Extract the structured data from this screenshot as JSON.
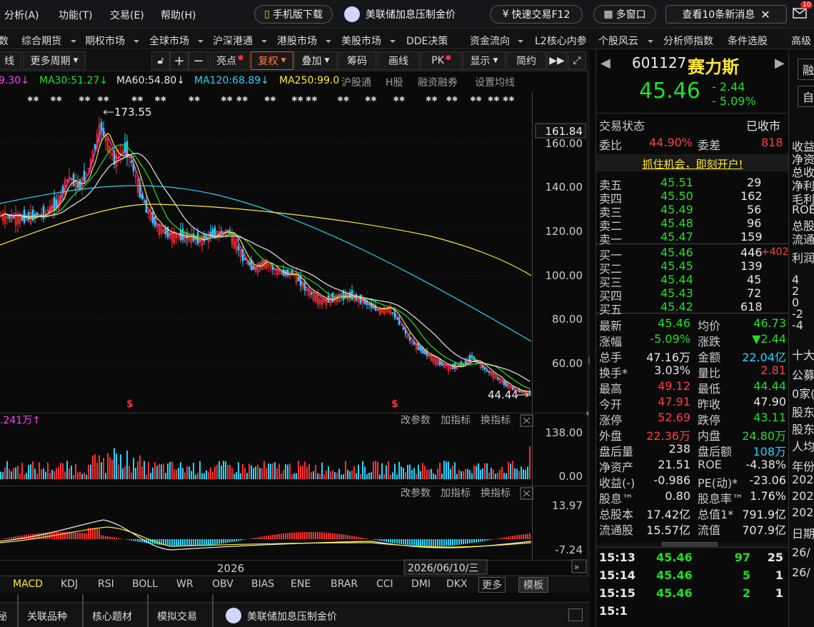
{
  "top": {
    "menus": [
      "分析(A)",
      "功能(T)",
      "交易(E)",
      "帮助(H)"
    ],
    "mobile_download": "手机版下载",
    "ad_text": "美联储加息压制金价",
    "quick_trade": "快速交易F12",
    "multi_window": "多窗口",
    "news_button": "查看10条新消息",
    "notif_count": "10"
  },
  "nav": [
    "数",
    "综合期货",
    "期权市场",
    "全球市场",
    "沪深港通",
    "港股市场",
    "美股市场",
    "DDE决策",
    "资金流向",
    "L2核心内参",
    "个股风云",
    "分析师指数",
    "条件选股",
    "高级"
  ],
  "toolbar": [
    "线",
    "更多周期",
    "亮点",
    "复权",
    "叠加",
    "筹码",
    "画线",
    "PK",
    "显示",
    "简约"
  ],
  "ma": [
    {
      "label": "9.30↓",
      "color": "#ff40ff"
    },
    {
      "label": "MA30:51.27↓",
      "color": "#1fe028"
    },
    {
      "label": "MA60:54.80↓",
      "color": "#e8e8e8"
    },
    {
      "label": "MA120:68.89↓",
      "color": "#25d4ff"
    },
    {
      "label": "MA250:99.0",
      "color": "#ffe833"
    },
    {
      "label": "沪股通",
      "color": "#999999"
    },
    {
      "label": "H股",
      "color": "#999999"
    },
    {
      "label": "融资融券",
      "color": "#999999"
    },
    {
      "label": "设置均线",
      "color": "#999999"
    }
  ],
  "price_axis": [
    "161.84",
    "160.00",
    "140.00",
    "120.00",
    "100.00",
    "80.00",
    "60.00"
  ],
  "chart_marks": {
    "high": "173.55",
    "low": "44.44",
    "year": "2026",
    "date": "2026/06/10/三"
  },
  "vol": {
    "label": ".241万↑",
    "ticks": [
      "138.00",
      "0.00"
    ],
    "buttons": [
      "改参数",
      "加指标",
      "换指标"
    ]
  },
  "macd": {
    "ticks": [
      "13.97",
      "-7.24"
    ],
    "buttons": [
      "改参数",
      "加指标",
      "换指标"
    ]
  },
  "ind_tabs": [
    "MACD",
    "KDJ",
    "RSI",
    "BOLL",
    "WR",
    "OBV",
    "BIAS",
    "ENE",
    "BRAR",
    "CCI",
    "DMI",
    "DKX",
    "更多",
    "模板"
  ],
  "bottom": [
    "秘",
    "关联品种",
    "核心题材",
    "模拟交易",
    "美联储加息压制金价"
  ],
  "stock": {
    "code": "601127",
    "name": "赛力斯",
    "price": "45.46",
    "change": "- 2.44",
    "pct": "- 5.09%",
    "status_label": "交易状态",
    "status": "已收市",
    "weibi_label": "委比",
    "weibi": "44.90%",
    "weicha_label": "委差",
    "weicha": "818",
    "promo": "抓住机会，即刻开户!"
  },
  "sell": [
    {
      "label": "卖五",
      "price": "45.51",
      "vol": "29"
    },
    {
      "label": "卖四",
      "price": "45.50",
      "vol": "162"
    },
    {
      "label": "卖三",
      "price": "45.49",
      "vol": "56"
    },
    {
      "label": "卖二",
      "price": "45.48",
      "vol": "96"
    },
    {
      "label": "卖一",
      "price": "45.47",
      "vol": "159"
    }
  ],
  "buy": [
    {
      "label": "买一",
      "price": "45.46",
      "vol": "446",
      "extra": "+402"
    },
    {
      "label": "买二",
      "price": "45.45",
      "vol": "139",
      "extra": ""
    },
    {
      "label": "买三",
      "price": "45.44",
      "vol": "45",
      "extra": ""
    },
    {
      "label": "买四",
      "price": "45.43",
      "vol": "72",
      "extra": ""
    },
    {
      "label": "买五",
      "price": "45.42",
      "vol": "618",
      "extra": ""
    }
  ],
  "stats": [
    {
      "l1": "最新",
      "v1": "45.46",
      "c1": "g",
      "l2": "均价",
      "v2": "46.73",
      "c2": "g"
    },
    {
      "l1": "涨幅",
      "v1": "-5.09%",
      "c1": "g",
      "l2": "涨跌",
      "v2": "▼2.44",
      "c2": "g"
    },
    {
      "l1": "总手",
      "v1": "47.16万",
      "c1": "w",
      "l2": "金额",
      "v2": "22.04亿",
      "c2": "c"
    },
    {
      "l1": "换手*",
      "v1": "3.03%",
      "c1": "w",
      "l2": "量比",
      "v2": "2.81",
      "c2": "r"
    },
    {
      "l1": "最高",
      "v1": "49.12",
      "c1": "r",
      "l2": "最低",
      "v2": "44.44",
      "c2": "g"
    },
    {
      "l1": "今开",
      "v1": "47.91",
      "c1": "r",
      "l2": "昨收",
      "v2": "47.90",
      "c2": "w"
    },
    {
      "l1": "涨停",
      "v1": "52.69",
      "c1": "r",
      "l2": "跌停",
      "v2": "43.11",
      "c2": "g"
    },
    {
      "l1": "外盘",
      "v1": "22.36万",
      "c1": "r",
      "l2": "内盘",
      "v2": "24.80万",
      "c2": "g"
    },
    {
      "l1": "盘后量",
      "v1": "238",
      "c1": "w",
      "l2": "盘后额",
      "v2": "108万",
      "c2": "c"
    },
    {
      "l1": "净资产",
      "v1": "21.51",
      "c1": "w",
      "l2": "ROE",
      "v2": "-4.38%",
      "c2": "w"
    },
    {
      "l1": "收益(-)",
      "v1": "-0.986",
      "c1": "w",
      "l2": "PE(动)*",
      "v2": "-23.06",
      "c2": "w"
    },
    {
      "l1": "股息™",
      "v1": "0.80",
      "c1": "w",
      "l2": "股息率™",
      "v2": "1.76%",
      "c2": "w"
    },
    {
      "l1": "总股本",
      "v1": "17.42亿",
      "c1": "w",
      "l2": "总值1*",
      "v2": "791.9亿",
      "c2": "w"
    },
    {
      "l1": "流通股",
      "v1": "15.57亿",
      "c1": "w",
      "l2": "流值",
      "v2": "707.9亿",
      "c2": "w"
    }
  ],
  "ticks": [
    {
      "t": "15:13",
      "p": "45.46",
      "v": "97",
      "n": "25"
    },
    {
      "t": "15:14",
      "p": "45.46",
      "v": "5",
      "n": "1"
    },
    {
      "t": "15:15",
      "p": "45.46",
      "v": "2",
      "n": "1"
    },
    {
      "t": "15:1",
      "p": "",
      "v": "",
      "n": ""
    }
  ],
  "farright": [
    "融",
    "自",
    "收益",
    "净资",
    "总收",
    "净利",
    "毛利",
    "ROE",
    "总股",
    "流通",
    "利润",
    "4",
    "2",
    "0",
    "-2",
    "-4",
    "十大",
    "公募",
    "0家(",
    "股东",
    "股东",
    "人均",
    "年份",
    "202",
    "202",
    "202",
    "日期",
    "26/",
    "26/"
  ],
  "colors": {
    "ma5": "#ff40ff",
    "ma10": "#ffe833",
    "ma30": "#1fe028",
    "ma60": "#e8e8e8",
    "ma120": "#25d4ff",
    "ma250": "#ffe833",
    "up": "#ff3030",
    "down": "#25d4ff"
  }
}
